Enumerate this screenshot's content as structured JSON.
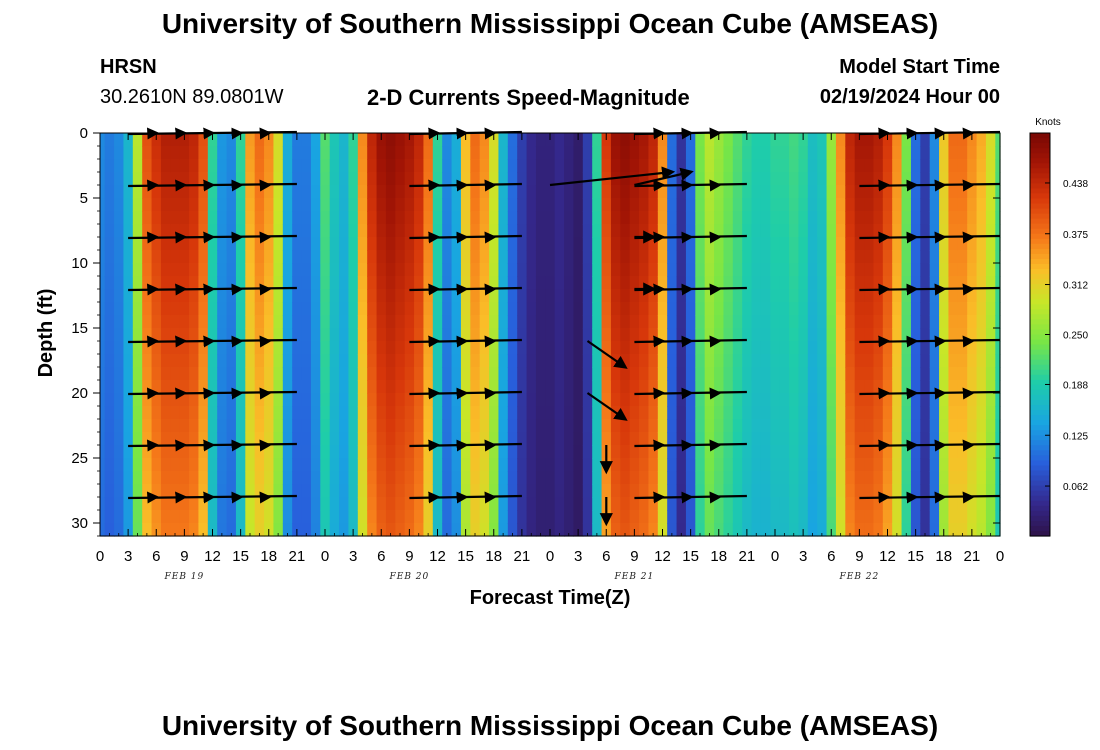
{
  "page": {
    "title_top": "University of Southern Mississippi Ocean Cube (AMSEAS)",
    "title_bottom": "University of Southern Mississippi Ocean Cube (AMSEAS)",
    "station": "HRSN",
    "coordinates": "30.2610N  89.0801W",
    "subtitle": "2-D Currents Speed-Magnitude",
    "model_start_label": "Model Start Time",
    "model_start_value": "02/19/2024 Hour 00"
  },
  "chart_data": {
    "type": "heatmap",
    "title": "2-D Currents Speed-Magnitude",
    "xlabel": "Forecast Time(Z)",
    "ylabel": "Depth (ft)",
    "x_tick_labels": [
      "0",
      "3",
      "6",
      "9",
      "12",
      "15",
      "18",
      "21",
      "0",
      "3",
      "6",
      "9",
      "12",
      "15",
      "18",
      "21",
      "0",
      "3",
      "6",
      "9",
      "12",
      "15",
      "18",
      "21",
      "0",
      "3",
      "6",
      "9",
      "12",
      "15",
      "18",
      "21",
      "0"
    ],
    "xlim_hours": [
      0,
      96
    ],
    "date_labels": [
      {
        "label": "FEB 19",
        "hour": 9
      },
      {
        "label": "FEB 20",
        "hour": 33
      },
      {
        "label": "FEB 21",
        "hour": 57
      },
      {
        "label": "FEB 22",
        "hour": 81
      }
    ],
    "y_ticks": [
      0,
      5,
      10,
      15,
      20,
      25,
      30
    ],
    "ylim_ft": [
      0,
      31
    ],
    "colorbar": {
      "unit": "Knots",
      "range": [
        0.0,
        0.5
      ],
      "tick_labels": [
        "0.438",
        "0.375",
        "0.312",
        "0.250",
        "0.188",
        "0.125",
        "0.062"
      ],
      "tick_values": [
        0.438,
        0.375,
        0.312,
        0.25,
        0.188,
        0.125,
        0.062
      ]
    },
    "speed_profile": {
      "hours": [
        0,
        1,
        2,
        3,
        4,
        5,
        6,
        7,
        8,
        9,
        10,
        11,
        12,
        13,
        14,
        15,
        16,
        17,
        18,
        19,
        20,
        21,
        22,
        23,
        24,
        25,
        26,
        27,
        28,
        29,
        30,
        31,
        32,
        33,
        34,
        35,
        36,
        37,
        38,
        39,
        40,
        41,
        42,
        43,
        44,
        45,
        46,
        47,
        48,
        49,
        50,
        51,
        52,
        53,
        54,
        55,
        56,
        57,
        58,
        59,
        60,
        61,
        62,
        63,
        64,
        65,
        66,
        67,
        68,
        69,
        70,
        71,
        72,
        73,
        74,
        75,
        76,
        77,
        78,
        79,
        80,
        81,
        82,
        83,
        84,
        85,
        86,
        87,
        88,
        89,
        90,
        91,
        92,
        93,
        94,
        95,
        96
      ],
      "surface_knots": [
        0.12,
        0.11,
        0.12,
        0.16,
        0.28,
        0.4,
        0.43,
        0.45,
        0.45,
        0.45,
        0.44,
        0.4,
        0.2,
        0.13,
        0.12,
        0.2,
        0.35,
        0.38,
        0.36,
        0.3,
        0.15,
        0.11,
        0.11,
        0.14,
        0.22,
        0.18,
        0.16,
        0.2,
        0.36,
        0.44,
        0.47,
        0.48,
        0.47,
        0.46,
        0.44,
        0.38,
        0.2,
        0.12,
        0.15,
        0.33,
        0.38,
        0.36,
        0.3,
        0.16,
        0.1,
        0.06,
        0.04,
        0.03,
        0.03,
        0.04,
        0.03,
        0.02,
        0.06,
        0.2,
        0.42,
        0.47,
        0.48,
        0.47,
        0.46,
        0.44,
        0.36,
        0.1,
        0.05,
        0.1,
        0.24,
        0.28,
        0.26,
        0.24,
        0.22,
        0.2,
        0.19,
        0.19,
        0.2,
        0.2,
        0.21,
        0.2,
        0.17,
        0.18,
        0.26,
        0.36,
        0.44,
        0.46,
        0.46,
        0.45,
        0.42,
        0.36,
        0.24,
        0.1,
        0.06,
        0.12,
        0.32,
        0.38,
        0.38,
        0.36,
        0.34,
        0.3,
        0.22
      ]
    },
    "vector_depths_ft": [
      0,
      4,
      8,
      12,
      16,
      20,
      24,
      28
    ]
  }
}
